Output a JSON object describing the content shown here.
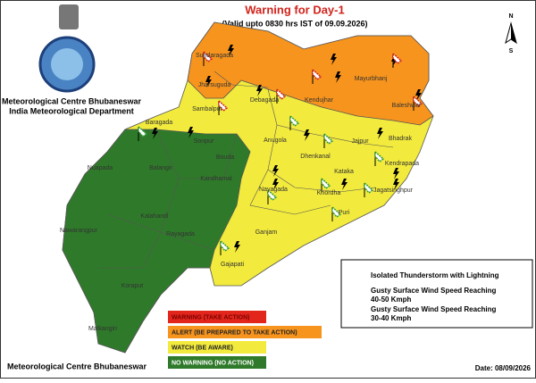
{
  "header": {
    "title": "Warning for Day-1",
    "subtitle": "(Valid upto 0830 hrs IST of 09.09.2026)",
    "org_line1": "Meteorological Centre Bhubaneswar",
    "org_line2": "India Meteorological Department"
  },
  "compass": {
    "north": "N",
    "south": "S"
  },
  "districts": [
    "Sundaragada",
    "Mayurbhanj",
    "Jharsuguda",
    "Sambalpur",
    "Debagada",
    "Kendujhar",
    "Baleshwar",
    "Baragada",
    "Anugola",
    "Bhadrak",
    "Sonpur",
    "Bouda",
    "Dhenkanal",
    "Jajpur",
    "Kendrapada",
    "Nuapada",
    "Balangir",
    "Kataka",
    "Jagatsinghpur",
    "Kandhamal",
    "Nayagada",
    "Khordha",
    "Kalahandi",
    "Puri",
    "Nawarangpur",
    "Ganjam",
    "Rayagada",
    "Gajapati",
    "Koraput",
    "Malkangiri"
  ],
  "symbol_legend": {
    "thunderstorm": "Isolated Thunderstorm with Lightning",
    "wind_40_50": [
      "Gusty Surface Wind Speed Reaching",
      "40-50 Kmph"
    ],
    "wind_30_40": [
      "Gusty Surface Wind Speed Reaching",
      "30-40 Kmph"
    ]
  },
  "color_legend": [
    {
      "label": "WARNING (TAKE ACTION)",
      "color": "#e3261c"
    },
    {
      "label": "ALERT (BE PREPARED TO TAKE ACTION)",
      "color": "#f7941d"
    },
    {
      "label": "WATCH (BE AWARE)",
      "color": "#f2ea3c"
    },
    {
      "label": "NO WARNING (NO ACTION)",
      "color": "#2f7a2a"
    }
  ],
  "footer": {
    "org": "Meteorological Centre Bhubaneswar",
    "date": "Date: 08/09/2026"
  }
}
